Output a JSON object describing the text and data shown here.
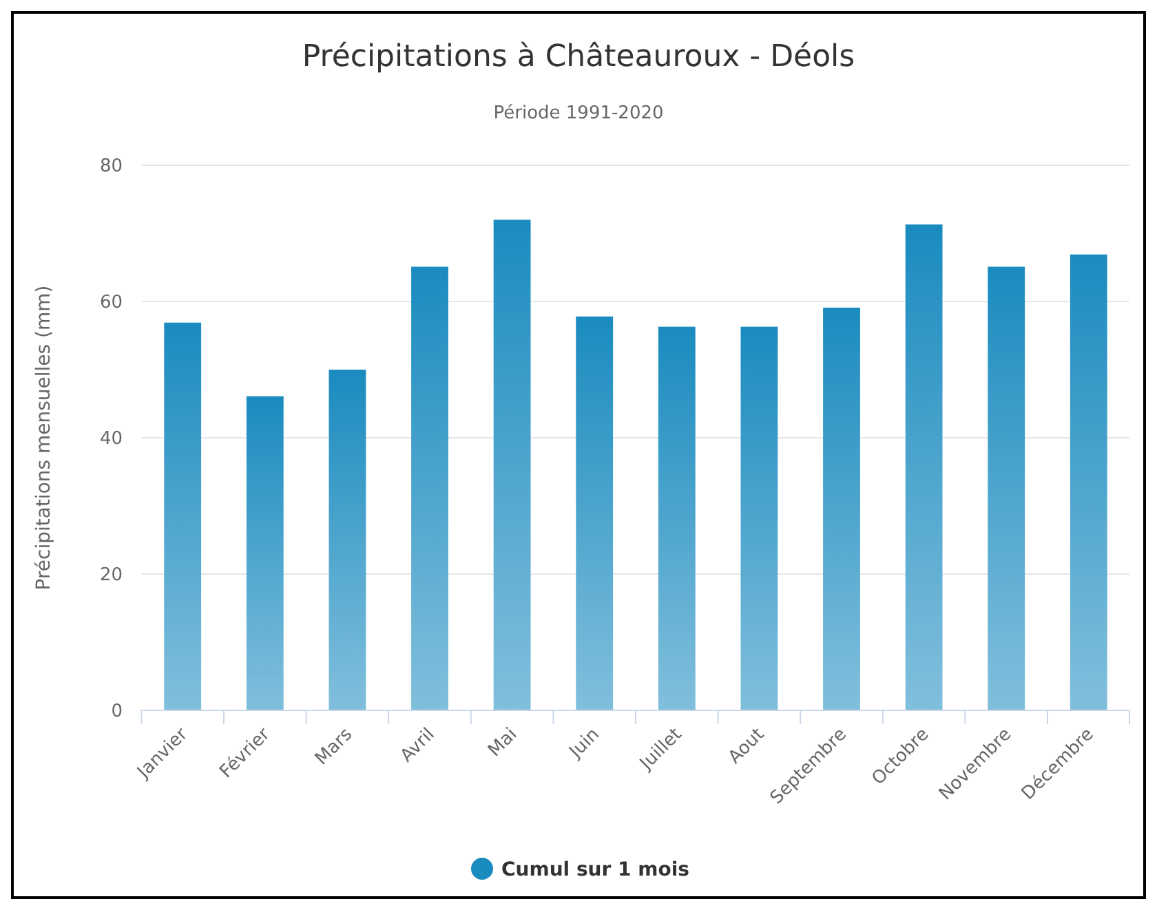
{
  "chart_data": {
    "type": "bar",
    "title": "Précipitations à Châteauroux - Déols",
    "subtitle": "Période 1991-2020",
    "ylabel": "Précipitations mensuelles (mm)",
    "categories": [
      "Janvier",
      "Février",
      "Mars",
      "Avril",
      "Mai",
      "Juin",
      "Juillet",
      "Aout",
      "Septembre",
      "Octobre",
      "Novembre",
      "Décembre"
    ],
    "series": [
      {
        "name": "Cumul sur 1 mois",
        "color": "#1a8bbf",
        "values": [
          56.9,
          46.1,
          50.0,
          65.1,
          72.0,
          57.8,
          56.3,
          56.3,
          59.1,
          71.3,
          65.1,
          66.9
        ]
      }
    ],
    "ylim": [
      0,
      80
    ],
    "yticks": [
      0,
      20,
      40,
      60,
      80
    ],
    "grid": "y",
    "legend": "bottom"
  }
}
